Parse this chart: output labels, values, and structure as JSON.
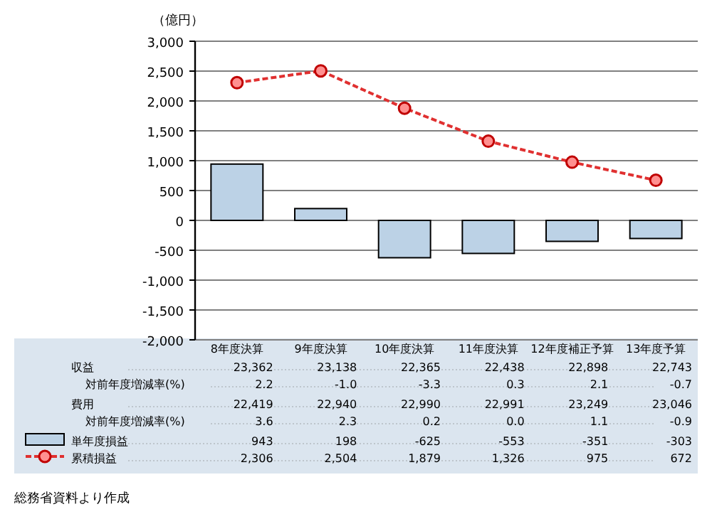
{
  "chart_data": {
    "type": "bar",
    "ylabel": "（億円）",
    "categories": [
      "8年度決算",
      "9年度決算",
      "10年度決算",
      "11年度決算",
      "12年度補正予算",
      "13年度予算"
    ],
    "series": [
      {
        "name": "単年度損益",
        "color": "#bcd2e6",
        "values": [
          943,
          198,
          -625,
          -553,
          -351,
          -303
        ],
        "value_labels": [
          "943",
          "198",
          "-625",
          "-553",
          "-351",
          "-303"
        ]
      },
      {
        "name": "累積損益",
        "type": "line",
        "color": "#e03030",
        "values": [
          2306,
          2504,
          1879,
          1326,
          975,
          672
        ],
        "value_labels": [
          "2,306",
          "2,504",
          "1,879",
          "1,326",
          "975",
          "672"
        ]
      }
    ],
    "ylim": [
      -2000,
      3000
    ],
    "yticks": [
      {
        "value": -2000,
        "label": "-2,000"
      },
      {
        "value": -1500,
        "label": "-1,500"
      },
      {
        "value": -1000,
        "label": "-1,000"
      },
      {
        "value": -500,
        "label": "-500"
      },
      0,
      500,
      {
        "value": 1000,
        "label": "1,000"
      },
      {
        "value": 1500,
        "label": "1,500"
      },
      {
        "value": 2000,
        "label": "2,000"
      },
      {
        "value": 2500,
        "label": "2,500"
      },
      {
        "value": 3000,
        "label": "3,000"
      }
    ],
    "grid": "y",
    "legend": "bottom",
    "marker": "circle",
    "line_style": "dashed",
    "annotations": [
      "総務省資料より作成",
      "収益",
      "23,362",
      "23,138",
      "22,365",
      "22,438",
      "22,898",
      "22,743",
      "対前年度増減率(%)",
      "2.2",
      "-1.0",
      "-3.3",
      "0.3",
      "2.1",
      "-0.7",
      "費用",
      "22,419",
      "22,940",
      "22,990",
      "22,991",
      "23,249",
      "23,046",
      "対前年度増減率(%)",
      "3.6",
      "2.3",
      "0.2",
      "0.0",
      "1.1",
      "-0.9"
    ]
  }
}
